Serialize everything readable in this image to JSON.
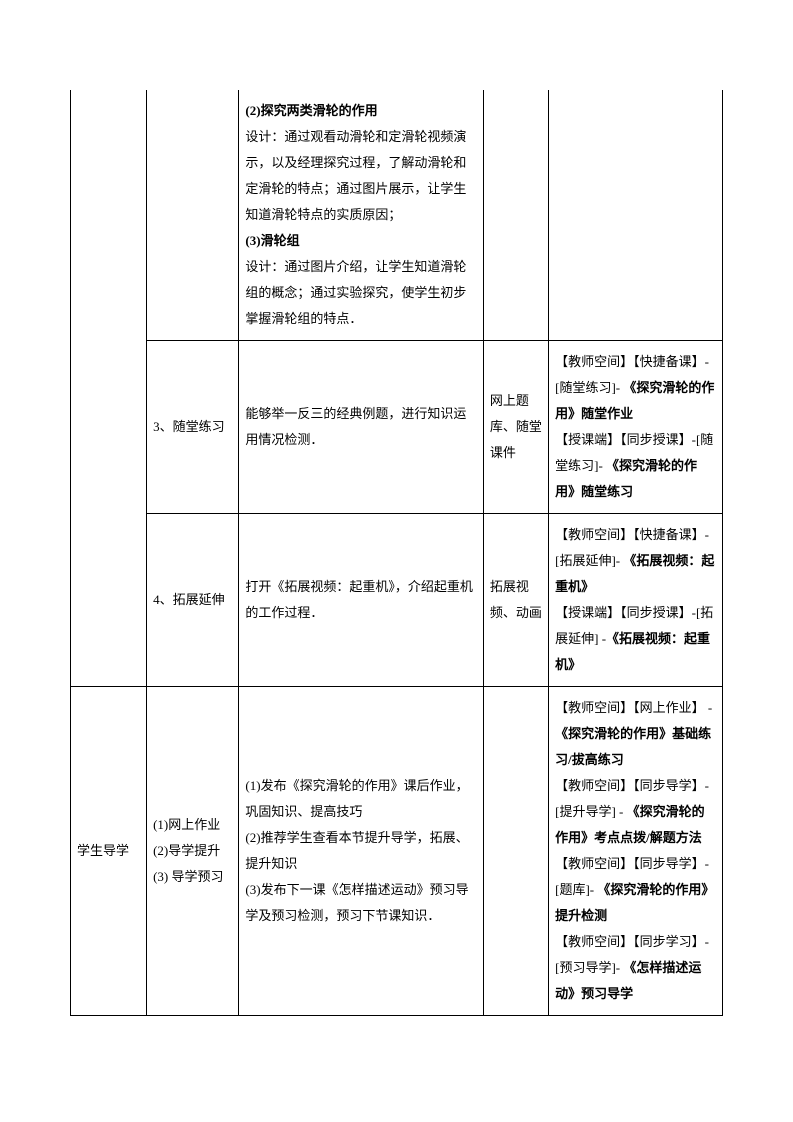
{
  "table": {
    "rows": [
      {
        "col1": "",
        "col2": "",
        "col3_parts": [
          {
            "text": "(2)探究两类滑轮的作用",
            "bold": true
          },
          {
            "text": "设计：通过观看动滑轮和定滑轮视频演示，以及经理探究过程，了解动滑轮和定滑轮的特点；通过图片展示，让学生知道滑轮特点的实质原因；",
            "bold": false
          },
          {
            "text": "(3)滑轮组",
            "bold": true
          },
          {
            "text": "设计：通过图片介绍，让学生知道滑轮组的概念；通过实验探究，使学生初步掌握滑轮组的特点．",
            "bold": false
          }
        ],
        "col4": "",
        "col5": ""
      },
      {
        "col1": "",
        "col2": "3、随堂练习",
        "col3": "能够举一反三的经典例题，进行知识运用情况检测．",
        "col4": "网上题库、随堂课件",
        "col5_parts": [
          {
            "text": "【教师空间】【快捷备课】-[随堂练习]- ",
            "bold": false
          },
          {
            "text": "《探究滑轮的作用》随堂作业",
            "bold": true
          },
          {
            "text": "\n【授课端】【同步授课】-[随堂练习]- ",
            "bold": false
          },
          {
            "text": "《探究滑轮的作用》随堂练习",
            "bold": true
          }
        ]
      },
      {
        "col1": "",
        "col2": "4、拓展延伸",
        "col3": "打开《拓展视频：起重机》，介绍起重机的工作过程．",
        "col4": "拓展视频、动画",
        "col5_parts": [
          {
            "text": "【教师空间】【快捷备课】-[拓展延伸]- ",
            "bold": false
          },
          {
            "text": "《拓展视频：起重机》",
            "bold": true
          },
          {
            "text": "\n【授课端】【同步授课】-[拓展延伸] -",
            "bold": false
          },
          {
            "text": "《拓展视频：起重机》",
            "bold": true
          }
        ]
      },
      {
        "col1": "学生导学",
        "col2": "(1)网上作业\n(2)导学提升\n(3) 导学预习",
        "col3": "(1)发布《探究滑轮的作用》课后作业，巩固知识、提高技巧\n(2)推荐学生查看本节提升导学，拓展、提升知识\n(3)发布下一课《怎样描述运动》预习导学及预习检测，预习下节课知识．",
        "col4": "",
        "col5_parts": [
          {
            "text": "【教师空间】【网上作业】 -",
            "bold": false
          },
          {
            "text": "《探究滑轮的作用》基础练习/拔高练习",
            "bold": true
          },
          {
            "text": "\n【教师空间】【同步导学】-[提升导学] - ",
            "bold": false
          },
          {
            "text": "《探究滑轮的作用》考点点拨/解题方法",
            "bold": true
          },
          {
            "text": "\n【教师空间】【同步导学】-[题库]- ",
            "bold": false
          },
          {
            "text": "《探究滑轮的作用》提升检测",
            "bold": true
          },
          {
            "text": "\n【教师空间】【同步学习】-[预习导学]- ",
            "bold": false
          },
          {
            "text": "《怎样描述运动》预习导学",
            "bold": true
          }
        ]
      }
    ]
  }
}
